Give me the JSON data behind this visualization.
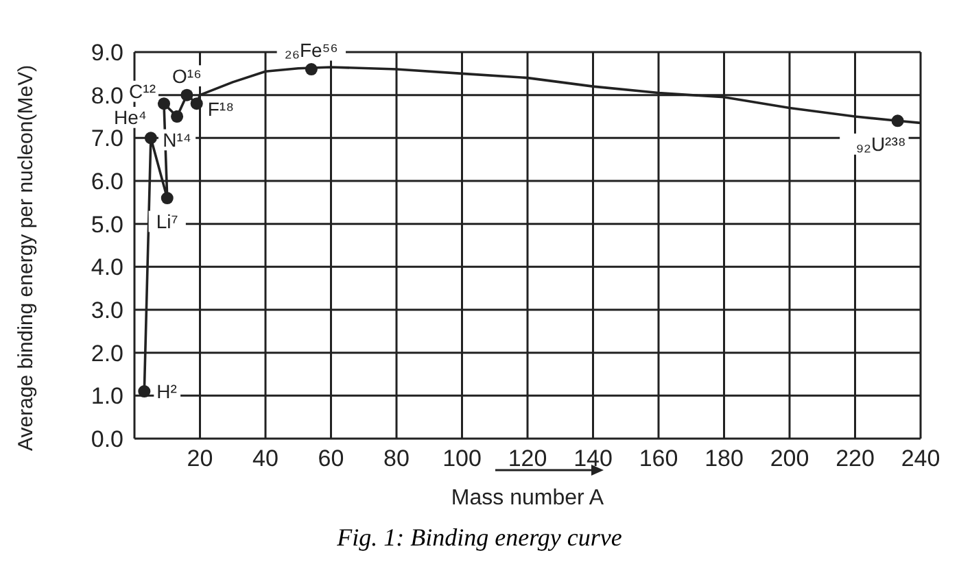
{
  "chart_data": {
    "type": "line",
    "title": "Fig. 1: Binding energy curve",
    "xlabel": "Mass number A",
    "ylabel": "Average binding energy per nucleon(MeV)",
    "series": [
      {
        "color": "#222222",
        "marker": "none",
        "x": [
          3,
          5,
          10,
          9,
          13,
          16,
          19,
          20,
          30,
          40,
          50,
          60,
          80,
          100,
          120,
          140,
          160,
          180,
          200,
          220,
          233,
          240
        ],
        "values": [
          1.1,
          7.0,
          5.6,
          7.8,
          7.5,
          8.0,
          7.8,
          8.0,
          8.3,
          8.55,
          8.62,
          8.65,
          8.6,
          8.5,
          8.4,
          8.2,
          8.05,
          7.95,
          7.7,
          7.5,
          7.4,
          7.35
        ]
      },
      {
        "type": "scatter",
        "color": "#222222",
        "marker": "circle",
        "x": [
          3,
          5,
          10,
          9,
          13,
          16,
          19,
          54,
          233
        ],
        "values": [
          1.1,
          7.0,
          5.6,
          7.8,
          7.5,
          8.0,
          7.8,
          8.6,
          7.4
        ]
      }
    ],
    "xlim": [
      0,
      240
    ],
    "xticks": [
      20,
      40,
      60,
      80,
      100,
      120,
      140,
      160,
      180,
      200,
      220,
      240
    ],
    "ylim": [
      0,
      9
    ],
    "yticks": [
      {
        "value": 0,
        "label": "0.0"
      },
      {
        "value": 1,
        "label": "1.0"
      },
      {
        "value": 2,
        "label": "2.0"
      },
      {
        "value": 3,
        "label": "3.0"
      },
      {
        "value": 4,
        "label": "4.0"
      },
      {
        "value": 5,
        "label": "5.0"
      },
      {
        "value": 6,
        "label": "6.0"
      },
      {
        "value": 7,
        "label": "7.0"
      },
      {
        "value": 8,
        "label": "8.0"
      },
      {
        "value": 9,
        "label": "9.0"
      }
    ],
    "grid": true,
    "annotations": [
      {
        "text": "H²",
        "x": 3,
        "y": 1.1
      },
      {
        "text": "He⁴",
        "x": 5,
        "y": 7.0
      },
      {
        "text": "Li⁷",
        "x": 10,
        "y": 5.6
      },
      {
        "text": "C¹²",
        "x": 9,
        "y": 7.8
      },
      {
        "text": "N¹⁴",
        "x": 13,
        "y": 7.5
      },
      {
        "text": "O¹⁶",
        "x": 16,
        "y": 8.0
      },
      {
        "text": "F¹⁸",
        "x": 19,
        "y": 7.8
      },
      {
        "text": "₂₆Fe⁵⁶",
        "x": 54,
        "y": 8.6
      },
      {
        "text": "₉₂U²³⁸",
        "x": 233,
        "y": 7.4
      }
    ]
  }
}
